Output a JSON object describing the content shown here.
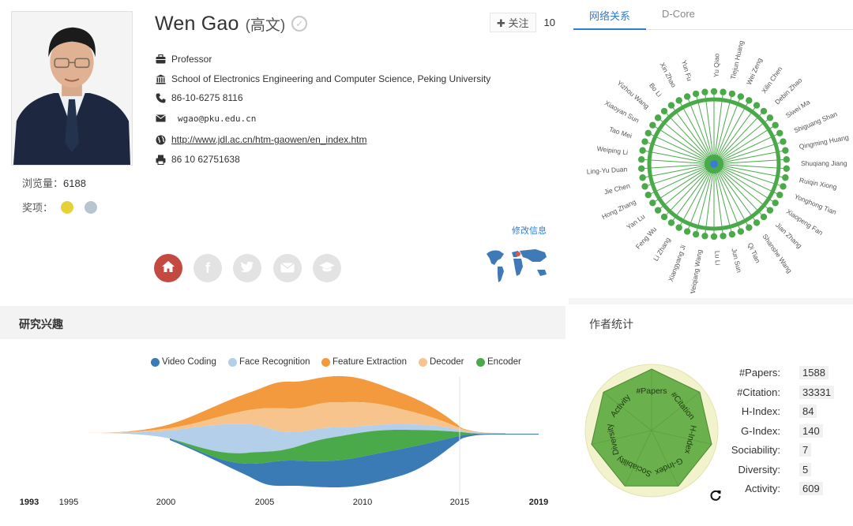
{
  "profile": {
    "name_en": "Wen Gao",
    "name_cn": "(高文)",
    "views_label": "浏览量：",
    "views": "6188",
    "awards_label": "奖项：",
    "award_colors": [
      "#e5d23a",
      "#b8c4d0"
    ],
    "follow_label": "✚ 关注",
    "follow_count": "10",
    "position": "Professor",
    "affiliation": "School of Electronics Engineering and Computer Science, Peking University",
    "phone": "86-10-6275 8116",
    "email": "wgao@pku.edu.cn",
    "homepage": "http://www.jdl.ac.cn/htm-gaowen/en_index.htm",
    "fax": "86 10 62751638",
    "edit_label": "修改信息"
  },
  "icons": {
    "position": "briefcase-icon",
    "affiliation": "institution-icon",
    "phone": "phone-icon",
    "email": "envelope-icon",
    "homepage": "globe-icon",
    "fax": "fax-icon"
  },
  "social": [
    "home-icon",
    "facebook-icon",
    "twitter-icon",
    "mail-icon",
    "education-icon"
  ],
  "tabs": [
    "网络关系",
    "D-Core"
  ],
  "sections": {
    "interest": "研究兴趣",
    "stats": "作者统计"
  },
  "colors": {
    "accent": "#2c7dd6",
    "home": "#c44941",
    "network_green": "#4aaa4a",
    "network_center": "#3a7bd5"
  },
  "network_labels": [
    "Yu Qiao",
    "Tiejun Huang",
    "Wei Zeng",
    "Xilin Chen",
    "Debin Zhao",
    "Siwei Ma",
    "Shiguang Shan",
    "Qingming Huang",
    "Shuqiang Jiang",
    "Ruiqin Xiong",
    "Yonghong Tian",
    "Xiaopeng Fan",
    "Jian Zhang",
    "Shanshe Wang",
    "Qi Tian",
    "Jun Sun",
    "Lu Li",
    "Weiqiang Wang",
    "Xiangyang Ji",
    "Li Zhang",
    "Feng Wu",
    "Yan Lu",
    "Hong Zhang",
    "Jie Chen",
    "Ling-Yu Duan",
    "Weiping Li",
    "Tao Mei",
    "Xiaoyan Sun",
    "Yizhou Wang",
    "Bo Li",
    "Xin Zhao",
    "Yun Fu"
  ],
  "stats": [
    {
      "label": "#Papers:",
      "value": "1588"
    },
    {
      "label": "#Citation:",
      "value": "33331"
    },
    {
      "label": "H-Index:",
      "value": "84"
    },
    {
      "label": "G-Index:",
      "value": "140"
    },
    {
      "label": "Sociability:",
      "value": "7"
    },
    {
      "label": "Diversity:",
      "value": "5"
    },
    {
      "label": "Activity:",
      "value": "609"
    }
  ],
  "radar_axes": [
    "#Papers",
    "#Citation",
    "H-Index",
    "G-Index",
    "Sociability",
    "Diversity",
    "Activity"
  ],
  "chart_data": {
    "type": "area",
    "series": [
      {
        "name": "Video Coding",
        "color": "#3a7ab5"
      },
      {
        "name": "Face Recognition",
        "color": "#b3cfe9"
      },
      {
        "name": "Feature Extraction",
        "color": "#f39a3e"
      },
      {
        "name": "Decoder",
        "color": "#f7c48e"
      },
      {
        "name": "Encoder",
        "color": "#4aaa4a"
      }
    ],
    "x_ticks": [
      {
        "label": "1993",
        "bold": true
      },
      {
        "label": "1995",
        "bold": false
      },
      {
        "label": "2000",
        "bold": false
      },
      {
        "label": "2005",
        "bold": false
      },
      {
        "label": "2010",
        "bold": false
      },
      {
        "label": "2015",
        "bold": false
      },
      {
        "label": "2019",
        "bold": true
      }
    ]
  }
}
